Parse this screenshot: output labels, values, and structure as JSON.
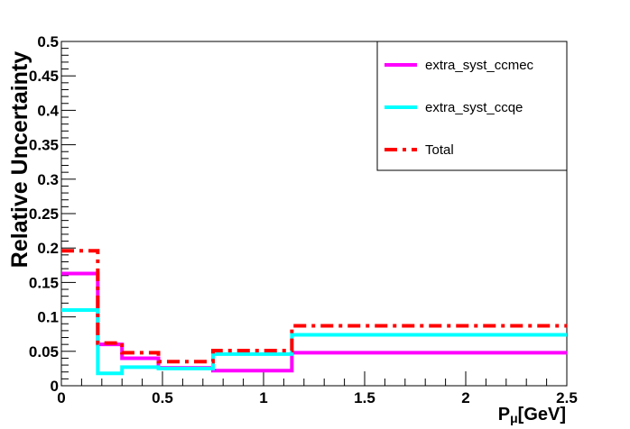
{
  "chart_data": {
    "type": "line",
    "style": "step-histogram",
    "xlabel": "Pμ[GeV]",
    "xlabel_main": "P",
    "xlabel_sub": "μ",
    "xlabel_unit": "[GeV]",
    "ylabel": "Relative Uncertainty",
    "xlim": [
      0,
      2.5
    ],
    "ylim": [
      0,
      0.5
    ],
    "x_ticks": [
      "0",
      "0.5",
      "1",
      "1.5",
      "2",
      "2.5"
    ],
    "x_tick_values": [
      0,
      0.5,
      1,
      1.5,
      2,
      2.5
    ],
    "y_ticks": [
      "0",
      "0.05",
      "0.1",
      "0.15",
      "0.2",
      "0.25",
      "0.3",
      "0.35",
      "0.4",
      "0.45",
      "0.5"
    ],
    "y_tick_values": [
      0,
      0.05,
      0.1,
      0.15,
      0.2,
      0.25,
      0.3,
      0.35,
      0.4,
      0.45,
      0.5
    ],
    "grid": false,
    "legend_position": "top-right",
    "bin_edges": [
      0,
      0.18,
      0.3,
      0.48,
      0.75,
      1.14,
      2.5
    ],
    "series": [
      {
        "name": "extra_syst_ccmec",
        "color": "#ff00ff",
        "dash": "solid",
        "values": [
          0.163,
          0.06,
          0.04,
          0.026,
          0.022,
          0.048
        ]
      },
      {
        "name": "extra_syst_ccqe",
        "color": "#00ffff",
        "dash": "solid",
        "values": [
          0.11,
          0.018,
          0.027,
          0.025,
          0.046,
          0.074
        ]
      },
      {
        "name": "Total",
        "color": "#ff0000",
        "dash": "dashdot",
        "values": [
          0.196,
          0.062,
          0.048,
          0.035,
          0.051,
          0.087
        ]
      }
    ]
  }
}
